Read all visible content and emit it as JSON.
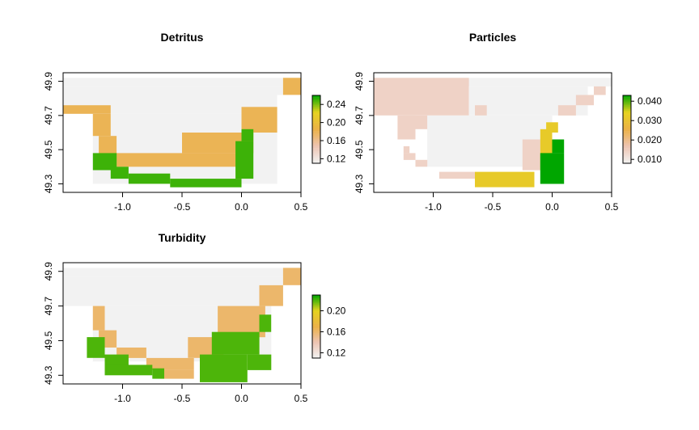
{
  "chart_data": [
    {
      "type": "heatmap",
      "title": "Detritus",
      "xlim": [
        -1.5,
        0.5
      ],
      "ylim": [
        49.25,
        49.95
      ],
      "x_ticks": [
        "-1.0",
        "-0.5",
        "0.0",
        "0.5"
      ],
      "x_tick_values": [
        -1.0,
        -0.5,
        0.0,
        0.5
      ],
      "y_ticks": [
        "49.3",
        "49.5",
        "49.7",
        "49.9"
      ],
      "y_tick_values": [
        49.3,
        49.5,
        49.7,
        49.9
      ],
      "legend_ticks": [
        "0.12",
        "0.16",
        "0.20",
        "0.24"
      ],
      "legend_tick_values": [
        0.12,
        0.16,
        0.2,
        0.24
      ],
      "legend_range": [
        0.11,
        0.26
      ],
      "legend_colors": [
        "#F2F2F2",
        "#EDC4B2",
        "#EBB147",
        "#E6D31F",
        "#00A600"
      ],
      "legend_placement": "right",
      "grid": false,
      "cells": [
        {
          "x": [
            -1.5,
            0.5
          ],
          "y": [
            49.87,
            49.92
          ],
          "value": 0.11
        },
        {
          "x": [
            -1.5,
            0.35
          ],
          "y": [
            49.82,
            49.87
          ],
          "value": 0.11
        },
        {
          "x": [
            0.35,
            0.5
          ],
          "y": [
            49.82,
            49.92
          ],
          "value": 0.18
        },
        {
          "x": [
            -1.5,
            0.3
          ],
          "y": [
            49.71,
            49.82
          ],
          "value": 0.11
        },
        {
          "x": [
            -1.5,
            -1.1
          ],
          "y": [
            49.71,
            49.76
          ],
          "value": 0.18
        },
        {
          "x": [
            -1.25,
            0.3
          ],
          "y": [
            49.3,
            49.71
          ],
          "value": 0.11
        },
        {
          "x": [
            -1.25,
            -1.1
          ],
          "y": [
            49.58,
            49.71
          ],
          "value": 0.18
        },
        {
          "x": [
            -1.2,
            -1.05
          ],
          "y": [
            49.44,
            49.58
          ],
          "value": 0.18
        },
        {
          "x": [
            -1.05,
            0.0
          ],
          "y": [
            49.4,
            49.48
          ],
          "value": 0.18
        },
        {
          "x": [
            -0.5,
            0.1
          ],
          "y": [
            49.48,
            49.6
          ],
          "value": 0.18
        },
        {
          "x": [
            0.0,
            0.3
          ],
          "y": [
            49.6,
            49.75
          ],
          "value": 0.18
        },
        {
          "x": [
            -1.25,
            -1.05
          ],
          "y": [
            49.38,
            49.48
          ],
          "value": 0.25
        },
        {
          "x": [
            -1.1,
            -0.95
          ],
          "y": [
            49.33,
            49.4
          ],
          "value": 0.25
        },
        {
          "x": [
            -0.95,
            -0.6
          ],
          "y": [
            49.3,
            49.36
          ],
          "value": 0.25
        },
        {
          "x": [
            -0.6,
            0.0
          ],
          "y": [
            49.28,
            49.33
          ],
          "value": 0.25
        },
        {
          "x": [
            -0.05,
            0.1
          ],
          "y": [
            49.33,
            49.55
          ],
          "value": 0.25
        },
        {
          "x": [
            0.0,
            0.1
          ],
          "y": [
            49.55,
            49.62
          ],
          "value": 0.25
        }
      ]
    },
    {
      "type": "heatmap",
      "title": "Particles",
      "xlim": [
        -1.5,
        0.5
      ],
      "ylim": [
        49.25,
        49.95
      ],
      "x_ticks": [
        "-1.0",
        "-0.5",
        "0.0",
        "0.5"
      ],
      "x_tick_values": [
        -1.0,
        -0.5,
        0.0,
        0.5
      ],
      "y_ticks": [
        "49.3",
        "49.5",
        "49.7",
        "49.9"
      ],
      "y_tick_values": [
        49.3,
        49.5,
        49.7,
        49.9
      ],
      "legend_ticks": [
        "0.010",
        "0.020",
        "0.030",
        "0.040"
      ],
      "legend_tick_values": [
        0.01,
        0.02,
        0.03,
        0.04
      ],
      "legend_range": [
        0.008,
        0.043
      ],
      "legend_colors": [
        "#F2F2F2",
        "#EDC4B2",
        "#EBB147",
        "#E6D31F",
        "#00A600"
      ],
      "legend_placement": "right",
      "grid": false,
      "cells": [
        {
          "x": [
            -1.5,
            0.5
          ],
          "y": [
            49.87,
            49.92
          ],
          "value": 0.008
        },
        {
          "x": [
            -1.5,
            -0.7
          ],
          "y": [
            49.7,
            49.92
          ],
          "value": 0.014
        },
        {
          "x": [
            -0.7,
            0.3
          ],
          "y": [
            49.7,
            49.87
          ],
          "value": 0.008
        },
        {
          "x": [
            -1.25,
            -0.7
          ],
          "y": [
            49.62,
            49.7
          ],
          "value": 0.014
        },
        {
          "x": [
            -0.65,
            -0.55
          ],
          "y": [
            49.7,
            49.76
          ],
          "value": 0.014
        },
        {
          "x": [
            0.35,
            0.45
          ],
          "y": [
            49.82,
            49.87
          ],
          "value": 0.014
        },
        {
          "x": [
            0.2,
            0.35
          ],
          "y": [
            49.76,
            49.82
          ],
          "value": 0.014
        },
        {
          "x": [
            0.05,
            0.2
          ],
          "y": [
            49.7,
            49.76
          ],
          "value": 0.014
        },
        {
          "x": [
            -1.3,
            -1.15
          ],
          "y": [
            49.56,
            49.7
          ],
          "value": 0.014
        },
        {
          "x": [
            -1.05,
            0.0
          ],
          "y": [
            49.4,
            49.7
          ],
          "value": 0.008
        },
        {
          "x": [
            -1.25,
            -1.15
          ],
          "y": [
            49.44,
            49.48
          ],
          "value": 0.014
        },
        {
          "x": [
            -1.25,
            -1.2
          ],
          "y": [
            49.48,
            49.52
          ],
          "value": 0.014
        },
        {
          "x": [
            -1.15,
            -1.05
          ],
          "y": [
            49.4,
            49.44
          ],
          "value": 0.014
        },
        {
          "x": [
            -0.95,
            -0.65
          ],
          "y": [
            49.33,
            49.37
          ],
          "value": 0.014
        },
        {
          "x": [
            -0.25,
            -0.1
          ],
          "y": [
            49.38,
            49.56
          ],
          "value": 0.014
        },
        {
          "x": [
            -0.65,
            -0.15
          ],
          "y": [
            49.28,
            49.37
          ],
          "value": 0.032
        },
        {
          "x": [
            -0.1,
            0.0
          ],
          "y": [
            49.38,
            49.62
          ],
          "value": 0.032
        },
        {
          "x": [
            -0.05,
            0.05
          ],
          "y": [
            49.6,
            49.66
          ],
          "value": 0.032
        },
        {
          "x": [
            -0.1,
            0.1
          ],
          "y": [
            49.3,
            49.48
          ],
          "value": 0.043
        },
        {
          "x": [
            0.0,
            0.1
          ],
          "y": [
            49.48,
            49.56
          ],
          "value": 0.043
        }
      ]
    },
    {
      "type": "heatmap",
      "title": "Turbidity",
      "xlim": [
        -1.5,
        0.5
      ],
      "ylim": [
        49.25,
        49.95
      ],
      "x_ticks": [
        "-1.0",
        "-0.5",
        "0.0",
        "0.5"
      ],
      "x_tick_values": [
        -1.0,
        -0.5,
        0.0,
        0.5
      ],
      "y_ticks": [
        "49.3",
        "49.5",
        "49.7",
        "49.9"
      ],
      "y_tick_values": [
        49.3,
        49.5,
        49.7,
        49.9
      ],
      "legend_ticks": [
        "0.12",
        "0.16",
        "0.20"
      ],
      "legend_tick_values": [
        0.12,
        0.16,
        0.2
      ],
      "legend_range": [
        0.11,
        0.23
      ],
      "legend_colors": [
        "#F2F2F2",
        "#EDC4B2",
        "#EBB147",
        "#E6D31F",
        "#00A600"
      ],
      "legend_placement": "right",
      "grid": false,
      "cells": [
        {
          "x": [
            -1.5,
            0.5
          ],
          "y": [
            49.87,
            49.92
          ],
          "value": 0.11
        },
        {
          "x": [
            -1.5,
            0.35
          ],
          "y": [
            49.7,
            49.87
          ],
          "value": 0.11
        },
        {
          "x": [
            0.35,
            0.5
          ],
          "y": [
            49.82,
            49.92
          ],
          "value": 0.16
        },
        {
          "x": [
            -1.25,
            0.25
          ],
          "y": [
            49.38,
            49.7
          ],
          "value": 0.11
        },
        {
          "x": [
            -1.25,
            -1.15
          ],
          "y": [
            49.56,
            49.7
          ],
          "value": 0.16
        },
        {
          "x": [
            -1.2,
            -1.05
          ],
          "y": [
            49.46,
            49.56
          ],
          "value": 0.16
        },
        {
          "x": [
            -1.05,
            -0.8
          ],
          "y": [
            49.4,
            49.46
          ],
          "value": 0.16
        },
        {
          "x": [
            -0.8,
            -0.4
          ],
          "y": [
            49.33,
            49.4
          ],
          "value": 0.16
        },
        {
          "x": [
            -0.65,
            -0.4
          ],
          "y": [
            49.28,
            49.33
          ],
          "value": 0.16
        },
        {
          "x": [
            -0.45,
            -0.15
          ],
          "y": [
            49.4,
            49.52
          ],
          "value": 0.16
        },
        {
          "x": [
            -0.2,
            0.2
          ],
          "y": [
            49.52,
            49.7
          ],
          "value": 0.16
        },
        {
          "x": [
            0.15,
            0.35
          ],
          "y": [
            49.7,
            49.82
          ],
          "value": 0.16
        },
        {
          "x": [
            -1.3,
            -1.15
          ],
          "y": [
            49.4,
            49.52
          ],
          "value": 0.22
        },
        {
          "x": [
            -1.15,
            -0.95
          ],
          "y": [
            49.33,
            49.42
          ],
          "value": 0.22
        },
        {
          "x": [
            -1.15,
            -0.75
          ],
          "y": [
            49.3,
            49.36
          ],
          "value": 0.22
        },
        {
          "x": [
            -0.75,
            -0.65
          ],
          "y": [
            49.28,
            49.34
          ],
          "value": 0.22
        },
        {
          "x": [
            -0.35,
            0.05
          ],
          "y": [
            49.26,
            49.42
          ],
          "value": 0.22
        },
        {
          "x": [
            -0.25,
            0.15
          ],
          "y": [
            49.42,
            49.55
          ],
          "value": 0.22
        },
        {
          "x": [
            0.05,
            0.25
          ],
          "y": [
            49.33,
            49.42
          ],
          "value": 0.22
        },
        {
          "x": [
            0.15,
            0.25
          ],
          "y": [
            49.55,
            49.65
          ],
          "value": 0.22
        }
      ]
    }
  ]
}
